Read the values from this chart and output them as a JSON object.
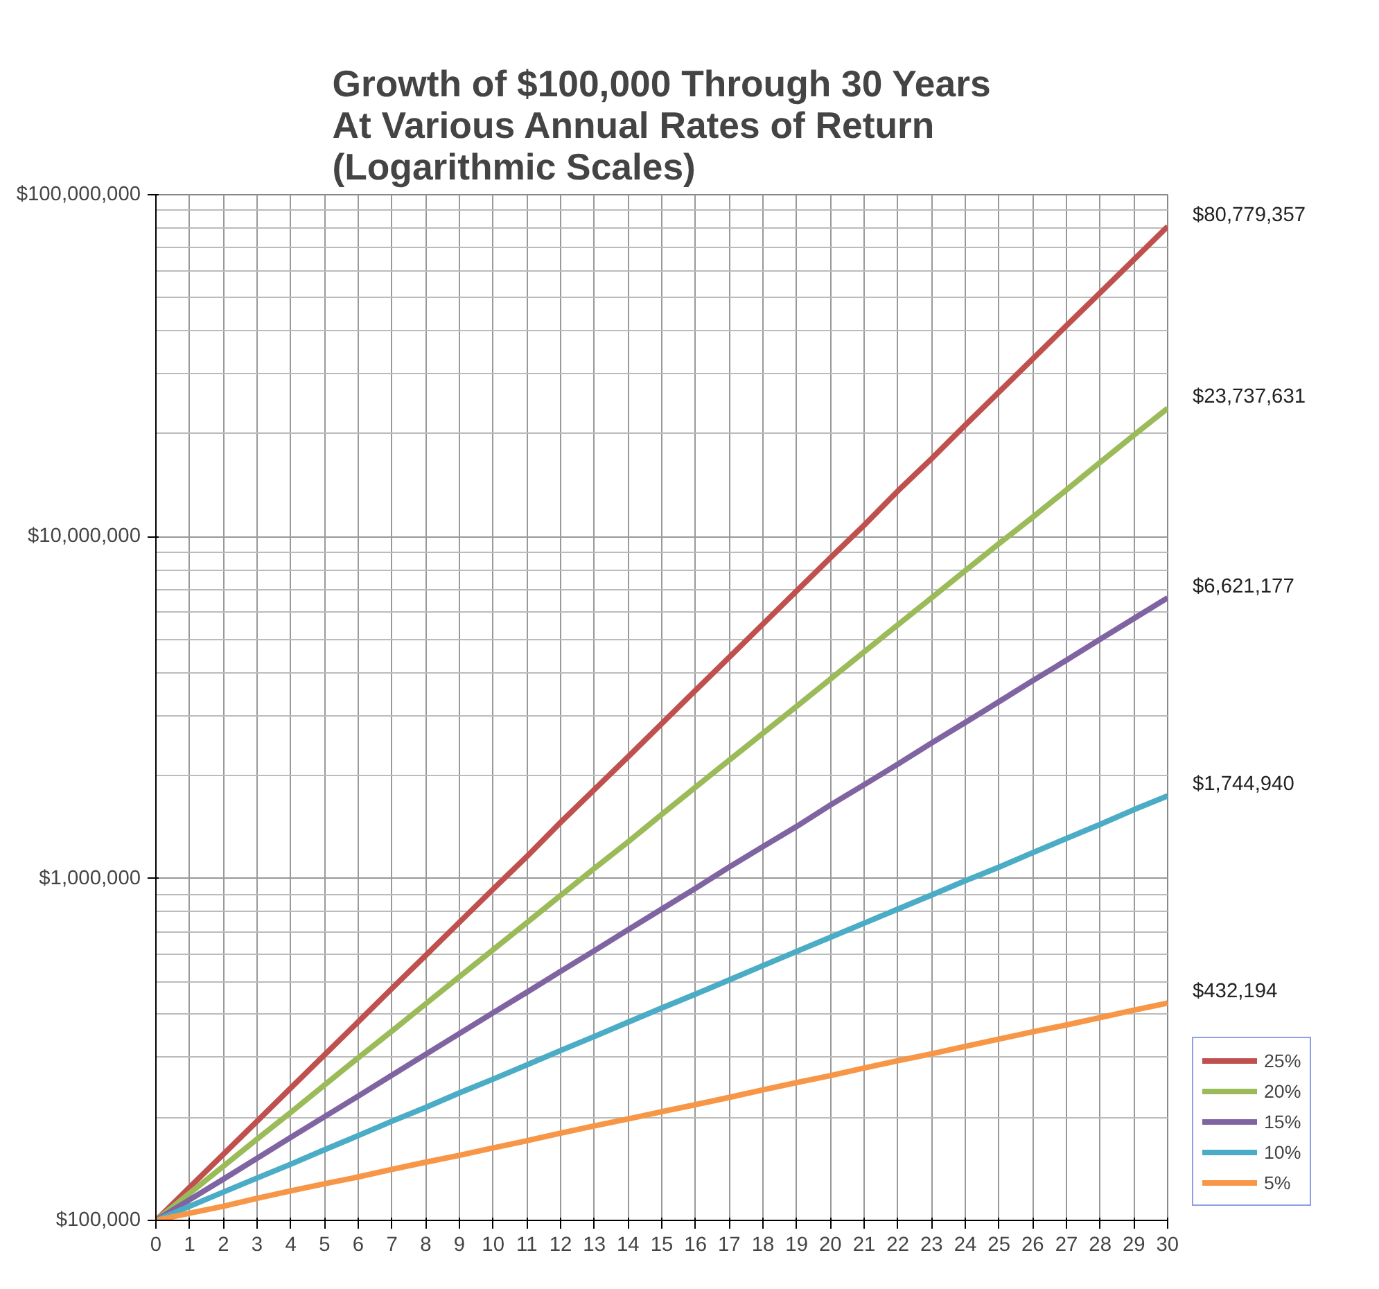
{
  "chart_data": {
    "type": "line",
    "title": "Growth of $100,000 Through 30 Years\nAt Various Annual Rates of Return\n(Logarithmic Scales)",
    "x": [
      0,
      1,
      2,
      3,
      4,
      5,
      6,
      7,
      8,
      9,
      10,
      11,
      12,
      13,
      14,
      15,
      16,
      17,
      18,
      19,
      20,
      21,
      22,
      23,
      24,
      25,
      26,
      27,
      28,
      29,
      30
    ],
    "series": [
      {
        "name": "25%",
        "color": "#c0504d",
        "values": [
          100000,
          125000,
          156000,
          195000,
          244000,
          305000,
          381000,
          477000,
          596000,
          745000,
          931000,
          1160000,
          1460000,
          1820000,
          2270000,
          2840000,
          3550000,
          4440000,
          5550000,
          6940000,
          8670000,
          10800000,
          13600000,
          16900000,
          21200000,
          26500000,
          33100000,
          41400000,
          51700000,
          64600000,
          80779357
        ]
      },
      {
        "name": "20%",
        "color": "#9bbb59",
        "values": [
          100000,
          120000,
          144000,
          173000,
          207000,
          249000,
          299000,
          358000,
          430000,
          516000,
          619000,
          743000,
          892000,
          1070000,
          1280000,
          1540000,
          1850000,
          2220000,
          2660000,
          3190000,
          3830000,
          4600000,
          5520000,
          6620000,
          7950000,
          9540000,
          11400000,
          13700000,
          16500000,
          19800000,
          23737631
        ]
      },
      {
        "name": "15%",
        "color": "#8064a2",
        "values": [
          100000,
          115000,
          132000,
          152000,
          175000,
          201000,
          231000,
          266000,
          306000,
          352000,
          405000,
          465000,
          535000,
          615000,
          708000,
          814000,
          936000,
          1080000,
          1240000,
          1420000,
          1640000,
          1880000,
          2160000,
          2490000,
          2860000,
          3290000,
          3790000,
          4350000,
          5010000,
          5760000,
          6621177
        ]
      },
      {
        "name": "10%",
        "color": "#4bacc6",
        "values": [
          100000,
          110000,
          121000,
          133000,
          146000,
          161000,
          177000,
          195000,
          214000,
          236000,
          259000,
          285000,
          314000,
          345000,
          380000,
          418000,
          459000,
          505000,
          556000,
          612000,
          673000,
          740000,
          814000,
          895000,
          985000,
          1080000,
          1190000,
          1310000,
          1440000,
          1590000,
          1744940
        ]
      },
      {
        "name": "5%",
        "color": "#f79646",
        "values": [
          100000,
          105000,
          110000,
          116000,
          122000,
          128000,
          134000,
          141000,
          148000,
          155000,
          163000,
          171000,
          180000,
          189000,
          198000,
          208000,
          218000,
          229000,
          241000,
          253000,
          265000,
          279000,
          293000,
          307000,
          323000,
          339000,
          356000,
          373000,
          392000,
          412000,
          432194
        ]
      }
    ],
    "annotations": [
      "$80,779,357",
      "$23,737,631",
      "$6,621,177",
      "$1,744,940",
      "$432,194"
    ],
    "xlim": [
      0,
      30
    ],
    "xticks": [
      0,
      1,
      2,
      3,
      4,
      5,
      6,
      7,
      8,
      9,
      10,
      11,
      12,
      13,
      14,
      15,
      16,
      17,
      18,
      19,
      20,
      21,
      22,
      23,
      24,
      25,
      26,
      27,
      28,
      29,
      30
    ],
    "ylim": [
      100000,
      100000000
    ],
    "yticks": [
      {
        "value": 100000,
        "label": "$100,000"
      },
      {
        "value": 1000000,
        "label": "$1,000,000"
      },
      {
        "value": 10000000,
        "label": "$10,000,000"
      },
      {
        "value": 100000000,
        "label": "$100,000,000"
      }
    ],
    "log": "y",
    "grid": true,
    "legend": "bottom right"
  }
}
